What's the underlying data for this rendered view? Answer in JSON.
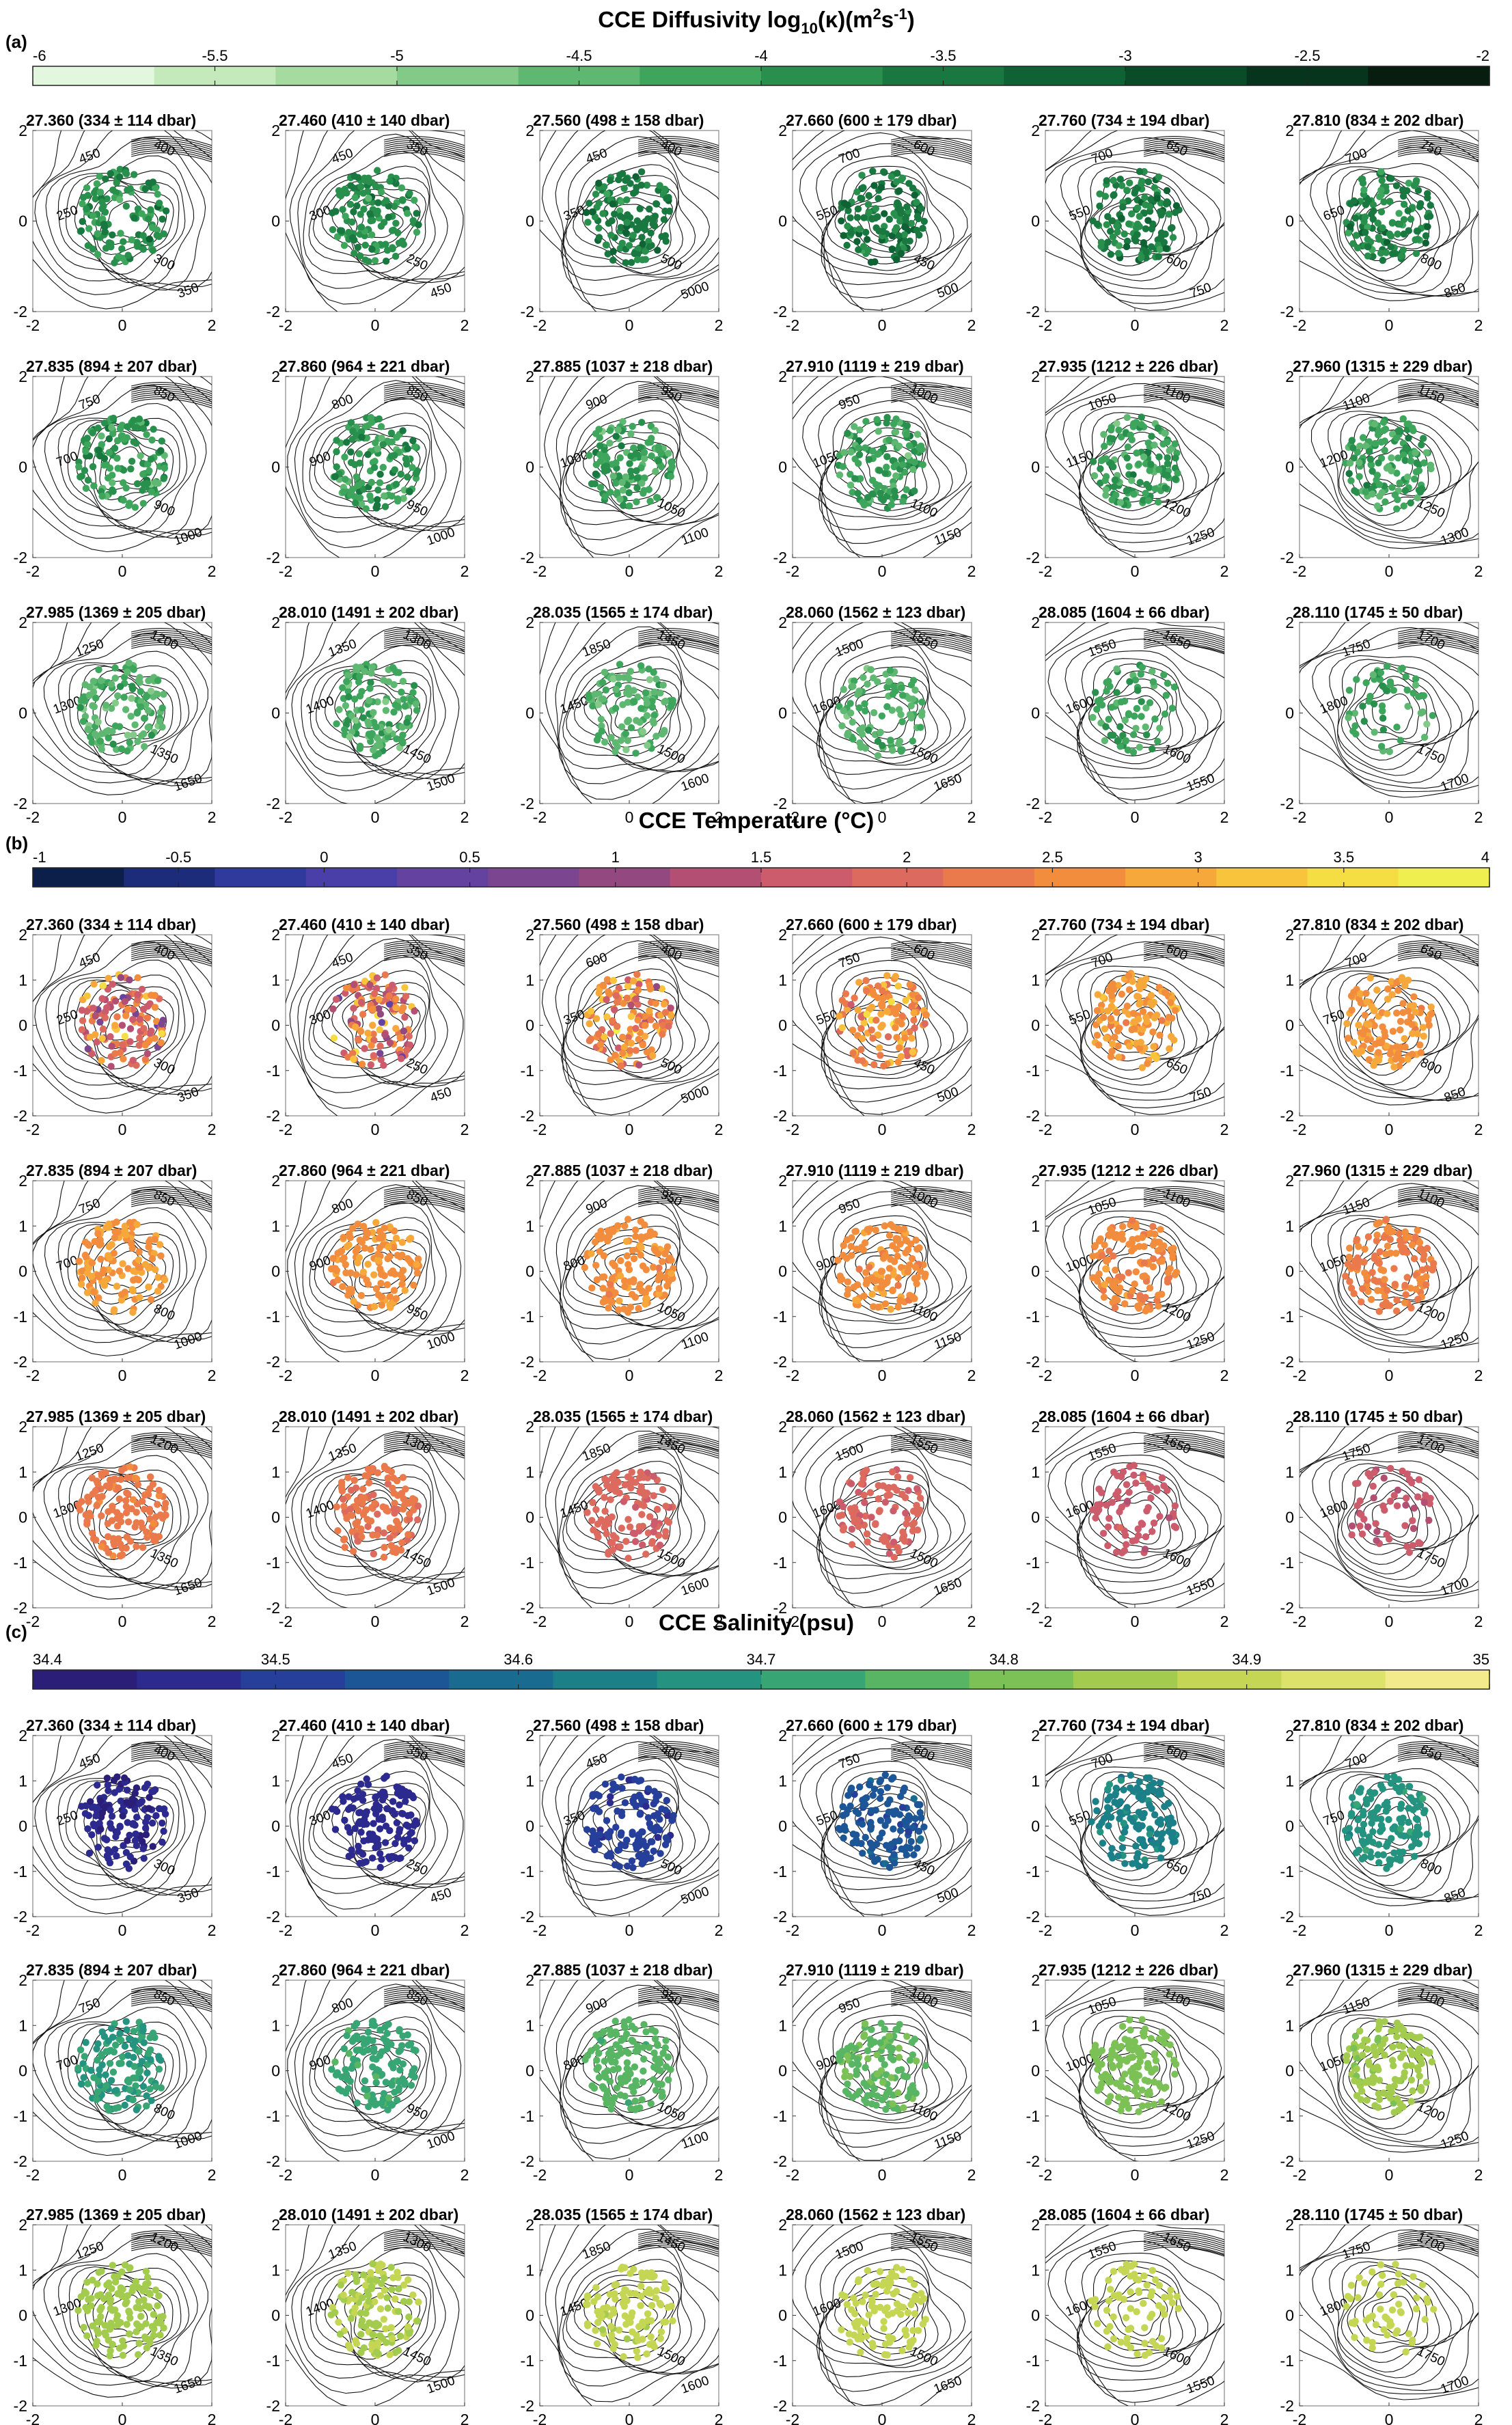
{
  "figure": {
    "panel_labels": [
      "(a)",
      "(b)",
      "(c)"
    ]
  },
  "colors": {
    "diffusivity": [
      "#e3f6de",
      "#c4eabc",
      "#a5db9f",
      "#83ca88",
      "#5fb872",
      "#3ea55d",
      "#288f4d",
      "#187840",
      "#0f6234",
      "#0a4b28",
      "#07341c",
      "#061d10"
    ],
    "temperature": [
      "#0b1f4a",
      "#1c2c7a",
      "#2f3a9c",
      "#4a3ea8",
      "#64429f",
      "#7b468f",
      "#93497f",
      "#b34f72",
      "#cc5c6c",
      "#dd6a5e",
      "#ea7a4c",
      "#f28d3e",
      "#f6a83a",
      "#f7c43c",
      "#f5dd44",
      "#f0ef50"
    ],
    "salinity": [
      "#2a1e78",
      "#2d2a8f",
      "#253f9b",
      "#1d5697",
      "#196c8f",
      "#1b8088",
      "#249480",
      "#38a574",
      "#58b563",
      "#7cc156",
      "#a3cc4e",
      "#c4d653",
      "#dde26b",
      "#f2ea8b"
    ]
  },
  "chart_data": [
    {
      "type": "scatter",
      "variable": "diffusivity",
      "title": "CCE Diffusivity log10(κ)(m2s-1)",
      "title_parts": {
        "pre": "CCE Diffusivity log",
        "sub": "10",
        "mid": "(κ)(m",
        "sup1": "2",
        "mid2": "s",
        "sup2": "-1",
        "post": ")"
      },
      "colorbar": {
        "min": -6,
        "max": -2,
        "ticks": [
          "-6",
          "-5.5",
          "-5",
          "-4.5",
          "-4",
          "-3.5",
          "-3",
          "-2.5",
          "-2"
        ]
      },
      "xlim": [
        -2,
        2
      ],
      "ylim": [
        -2,
        2
      ],
      "x_ticks": [
        "-2",
        "0",
        "2"
      ],
      "y_ticks": [
        "-2",
        "0",
        "2"
      ],
      "subplots": [
        {
          "title": "27.360 (334 ± 114 dbar)",
          "mean": -3.9,
          "spread": 0.4,
          "n": 130,
          "contours": [
            "450",
            "400",
            "250",
            "300",
            "350"
          ]
        },
        {
          "title": "27.460 (410 ± 140 dbar)",
          "mean": -3.8,
          "spread": 0.4,
          "n": 130,
          "contours": [
            "450",
            "350",
            "300",
            "250",
            "450"
          ]
        },
        {
          "title": "27.560 (498 ± 158 dbar)",
          "mean": -3.6,
          "spread": 0.4,
          "n": 130,
          "contours": [
            "450",
            "400",
            "350",
            "500",
            "5000"
          ]
        },
        {
          "title": "27.660 (600 ± 179 dbar)",
          "mean": -3.5,
          "spread": 0.4,
          "n": 130,
          "contours": [
            "700",
            "600",
            "550",
            "450",
            "500"
          ]
        },
        {
          "title": "27.760 (734 ± 194 dbar)",
          "mean": -3.6,
          "spread": 0.4,
          "n": 130,
          "contours": [
            "700",
            "650",
            "550",
            "600",
            "750"
          ]
        },
        {
          "title": "27.810 (834 ± 202 dbar)",
          "mean": -3.7,
          "spread": 0.4,
          "n": 130,
          "contours": [
            "700",
            "750",
            "650",
            "800",
            "850"
          ]
        },
        {
          "title": "27.835 (894 ± 207 dbar)",
          "mean": -4.0,
          "spread": 0.45,
          "n": 130,
          "contours": [
            "750",
            "850",
            "700",
            "900",
            "1000"
          ]
        },
        {
          "title": "27.860 (964 ± 221 dbar)",
          "mean": -4.0,
          "spread": 0.45,
          "n": 130,
          "contours": [
            "800",
            "850",
            "900",
            "950",
            "1000"
          ]
        },
        {
          "title": "27.885 (1037 ± 218 dbar)",
          "mean": -4.1,
          "spread": 0.45,
          "n": 130,
          "contours": [
            "900",
            "950",
            "1000",
            "1050",
            "1100"
          ]
        },
        {
          "title": "27.910 (1119 ± 219 dbar)",
          "mean": -4.1,
          "spread": 0.45,
          "n": 130,
          "contours": [
            "950",
            "1000",
            "1050",
            "1100",
            "1150"
          ]
        },
        {
          "title": "27.935 (1212 ± 226 dbar)",
          "mean": -4.1,
          "spread": 0.45,
          "n": 130,
          "contours": [
            "1050",
            "1100",
            "1150",
            "1200",
            "1250"
          ]
        },
        {
          "title": "27.960 (1315 ± 229 dbar)",
          "mean": -4.1,
          "spread": 0.45,
          "n": 130,
          "contours": [
            "1100",
            "1150",
            "1200",
            "1250",
            "1300"
          ]
        },
        {
          "title": "27.985 (1369 ± 205 dbar)",
          "mean": -4.4,
          "spread": 0.4,
          "n": 130,
          "contours": [
            "1250",
            "1200",
            "1300",
            "1350",
            "1650"
          ]
        },
        {
          "title": "28.010 (1491 ± 202 dbar)",
          "mean": -4.3,
          "spread": 0.4,
          "n": 130,
          "contours": [
            "1350",
            "1300",
            "1400",
            "1450",
            "1500"
          ]
        },
        {
          "title": "28.035 (1565 ± 174 dbar)",
          "mean": -4.4,
          "spread": 0.35,
          "n": 110,
          "contours": [
            "1850",
            "1450",
            "1450",
            "1500",
            "1600"
          ]
        },
        {
          "title": "28.060 (1562 ± 123 dbar)",
          "mean": -4.4,
          "spread": 0.35,
          "n": 95,
          "contours": [
            "1500",
            "1550",
            "1600",
            "1500",
            "1650"
          ]
        },
        {
          "title": "28.085 (1604 ± 66 dbar)",
          "mean": -4.2,
          "spread": 0.35,
          "n": 70,
          "contours": [
            "1550",
            "1650",
            "1600",
            "1600",
            "1550"
          ]
        },
        {
          "title": "28.110 (1745 ± 50 dbar)",
          "mean": -4.2,
          "spread": 0.35,
          "n": 55,
          "contours": [
            "1750",
            "1700",
            "1800",
            "1750",
            "1700"
          ]
        }
      ]
    },
    {
      "type": "scatter",
      "variable": "temperature",
      "title": "CCE Temperature (°C)",
      "title_parts": {
        "pre": "CCE Temperature (°C)",
        "sub": "",
        "mid": "",
        "sup1": "",
        "mid2": "",
        "sup2": "",
        "post": ""
      },
      "colorbar": {
        "min": -1,
        "max": 4,
        "ticks": [
          "-1",
          "-0.5",
          "0",
          "0.5",
          "1",
          "1.5",
          "2",
          "2.5",
          "3",
          "3.5",
          "4"
        ]
      },
      "xlim": [
        -2,
        2
      ],
      "ylim": [
        -2,
        2
      ],
      "x_ticks": [
        "-2",
        "0",
        "2"
      ],
      "y_ticks": [
        "-2",
        "-1",
        "0",
        "1",
        "2"
      ],
      "subplots": [
        {
          "title": "27.360 (334 ± 114 dbar)",
          "mean": 2.0,
          "spread": 1.2,
          "n": 130,
          "contours": [
            "450",
            "400",
            "250",
            "300",
            "350"
          ]
        },
        {
          "title": "27.460 (410 ± 140 dbar)",
          "mean": 2.1,
          "spread": 1.1,
          "n": 130,
          "contours": [
            "450",
            "350",
            "300",
            "250",
            "450"
          ]
        },
        {
          "title": "27.560 (498 ± 158 dbar)",
          "mean": 2.4,
          "spread": 0.9,
          "n": 130,
          "contours": [
            "600",
            "400",
            "350",
            "500",
            "5000"
          ]
        },
        {
          "title": "27.660 (600 ± 179 dbar)",
          "mean": 2.6,
          "spread": 0.7,
          "n": 130,
          "contours": [
            "750",
            "600",
            "550",
            "450",
            "500"
          ]
        },
        {
          "title": "27.760 (734 ± 194 dbar)",
          "mean": 2.75,
          "spread": 0.35,
          "n": 130,
          "contours": [
            "700",
            "600",
            "550",
            "650",
            "750"
          ]
        },
        {
          "title": "27.810 (834 ± 202 dbar)",
          "mean": 2.75,
          "spread": 0.25,
          "n": 130,
          "contours": [
            "700",
            "650",
            "750",
            "800",
            "850"
          ]
        },
        {
          "title": "27.835 (894 ± 207 dbar)",
          "mean": 2.75,
          "spread": 0.2,
          "n": 130,
          "contours": [
            "750",
            "850",
            "700",
            "800",
            "1000"
          ]
        },
        {
          "title": "27.860 (964 ± 221 dbar)",
          "mean": 2.7,
          "spread": 0.2,
          "n": 130,
          "contours": [
            "800",
            "850",
            "900",
            "950",
            "1000"
          ]
        },
        {
          "title": "27.885 (1037 ± 218 dbar)",
          "mean": 2.65,
          "spread": 0.2,
          "n": 130,
          "contours": [
            "900",
            "950",
            "800",
            "1050",
            "1100"
          ]
        },
        {
          "title": "27.910 (1119 ± 219 dbar)",
          "mean": 2.6,
          "spread": 0.2,
          "n": 130,
          "contours": [
            "950",
            "1000",
            "900",
            "1100",
            "1150"
          ]
        },
        {
          "title": "27.935 (1212 ± 226 dbar)",
          "mean": 2.5,
          "spread": 0.2,
          "n": 130,
          "contours": [
            "1050",
            "1100",
            "1000",
            "1200",
            "1250"
          ]
        },
        {
          "title": "27.960 (1315 ± 229 dbar)",
          "mean": 2.4,
          "spread": 0.2,
          "n": 130,
          "contours": [
            "1150",
            "1100",
            "1050",
            "1200",
            "1250"
          ]
        },
        {
          "title": "27.985 (1369 ± 205 dbar)",
          "mean": 2.3,
          "spread": 0.15,
          "n": 130,
          "contours": [
            "1250",
            "1200",
            "1300",
            "1350",
            "1650"
          ]
        },
        {
          "title": "28.010 (1491 ± 202 dbar)",
          "mean": 2.2,
          "spread": 0.15,
          "n": 130,
          "contours": [
            "1350",
            "1300",
            "1400",
            "1450",
            "1500"
          ]
        },
        {
          "title": "28.035 (1565 ± 174 dbar)",
          "mean": 1.9,
          "spread": 0.15,
          "n": 110,
          "contours": [
            "1850",
            "1450",
            "1450",
            "1500",
            "1600"
          ]
        },
        {
          "title": "28.060 (1562 ± 123 dbar)",
          "mean": 1.85,
          "spread": 0.15,
          "n": 95,
          "contours": [
            "1500",
            "1550",
            "1600",
            "1500",
            "1650"
          ]
        },
        {
          "title": "28.085 (1604 ± 66 dbar)",
          "mean": 1.65,
          "spread": 0.15,
          "n": 70,
          "contours": [
            "1550",
            "1650",
            "1600",
            "1600",
            "1550"
          ]
        },
        {
          "title": "28.110 (1745 ± 50 dbar)",
          "mean": 1.55,
          "spread": 0.15,
          "n": 55,
          "contours": [
            "1750",
            "1700",
            "1800",
            "1750",
            "1700"
          ]
        }
      ]
    },
    {
      "type": "scatter",
      "variable": "salinity",
      "title": "CCE Salinity (psu)",
      "title_parts": {
        "pre": "CCE Salinity (psu)",
        "sub": "",
        "mid": "",
        "sup1": "",
        "mid2": "",
        "sup2": "",
        "post": ""
      },
      "colorbar": {
        "min": 34.4,
        "max": 35,
        "ticks": [
          "34.4",
          "34.5",
          "34.6",
          "34.7",
          "34.8",
          "34.9",
          "35"
        ]
      },
      "xlim": [
        -2,
        2
      ],
      "ylim": [
        -2,
        2
      ],
      "x_ticks": [
        "-2",
        "0",
        "2"
      ],
      "y_ticks": [
        "-2",
        "-1",
        "0",
        "1",
        "2"
      ],
      "subplots": [
        {
          "title": "27.360 (334 ± 114 dbar)",
          "mean": 34.45,
          "spread": 0.015,
          "n": 130,
          "contours": [
            "450",
            "400",
            "250",
            "300",
            "350"
          ]
        },
        {
          "title": "27.460 (410 ± 140 dbar)",
          "mean": 34.46,
          "spread": 0.015,
          "n": 130,
          "contours": [
            "450",
            "350",
            "300",
            "250",
            "450"
          ]
        },
        {
          "title": "27.560 (498 ± 158 dbar)",
          "mean": 34.5,
          "spread": 0.02,
          "n": 130,
          "contours": [
            "450",
            "400",
            "350",
            "500",
            "5000"
          ]
        },
        {
          "title": "27.660 (600 ± 179 dbar)",
          "mean": 34.55,
          "spread": 0.025,
          "n": 130,
          "contours": [
            "750",
            "600",
            "550",
            "450",
            "500"
          ]
        },
        {
          "title": "27.760 (734 ± 194 dbar)",
          "mean": 34.64,
          "spread": 0.025,
          "n": 130,
          "contours": [
            "700",
            "600",
            "550",
            "650",
            "750"
          ]
        },
        {
          "title": "27.810 (834 ± 202 dbar)",
          "mean": 34.68,
          "spread": 0.02,
          "n": 130,
          "contours": [
            "700",
            "650",
            "750",
            "800",
            "850"
          ]
        },
        {
          "title": "27.835 (894 ± 207 dbar)",
          "mean": 34.7,
          "spread": 0.02,
          "n": 130,
          "contours": [
            "750",
            "850",
            "700",
            "800",
            "1000"
          ]
        },
        {
          "title": "27.860 (964 ± 221 dbar)",
          "mean": 34.73,
          "spread": 0.015,
          "n": 130,
          "contours": [
            "800",
            "850",
            "900",
            "950",
            "1000"
          ]
        },
        {
          "title": "27.885 (1037 ± 218 dbar)",
          "mean": 34.76,
          "spread": 0.015,
          "n": 130,
          "contours": [
            "900",
            "950",
            "800",
            "1050",
            "1100"
          ]
        },
        {
          "title": "27.910 (1119 ± 219 dbar)",
          "mean": 34.78,
          "spread": 0.015,
          "n": 130,
          "contours": [
            "950",
            "1000",
            "900",
            "1100",
            "1150"
          ]
        },
        {
          "title": "27.935 (1212 ± 226 dbar)",
          "mean": 34.81,
          "spread": 0.015,
          "n": 130,
          "contours": [
            "1050",
            "1100",
            "1000",
            "1200",
            "1250"
          ]
        },
        {
          "title": "27.960 (1315 ± 229 dbar)",
          "mean": 34.84,
          "spread": 0.015,
          "n": 130,
          "contours": [
            "1150",
            "1100",
            "1050",
            "1200",
            "1250"
          ]
        },
        {
          "title": "27.985 (1369 ± 205 dbar)",
          "mean": 34.85,
          "spread": 0.01,
          "n": 130,
          "contours": [
            "1250",
            "1200",
            "1300",
            "1350",
            "1650"
          ]
        },
        {
          "title": "28.010 (1491 ± 202 dbar)",
          "mean": 34.87,
          "spread": 0.01,
          "n": 130,
          "contours": [
            "1350",
            "1300",
            "1400",
            "1450",
            "1500"
          ]
        },
        {
          "title": "28.035 (1565 ± 174 dbar)",
          "mean": 34.88,
          "spread": 0.01,
          "n": 110,
          "contours": [
            "1850",
            "1450",
            "1450",
            "1500",
            "1600"
          ]
        },
        {
          "title": "28.060 (1562 ± 123 dbar)",
          "mean": 34.89,
          "spread": 0.01,
          "n": 95,
          "contours": [
            "1500",
            "1550",
            "1600",
            "1500",
            "1650"
          ]
        },
        {
          "title": "28.085 (1604 ± 66 dbar)",
          "mean": 34.89,
          "spread": 0.01,
          "n": 70,
          "contours": [
            "1550",
            "1650",
            "1600",
            "1600",
            "1550"
          ]
        },
        {
          "title": "28.110 (1745 ± 50 dbar)",
          "mean": 34.89,
          "spread": 0.01,
          "n": 55,
          "contours": [
            "1750",
            "1700",
            "1800",
            "1750",
            "1700"
          ]
        }
      ]
    }
  ]
}
